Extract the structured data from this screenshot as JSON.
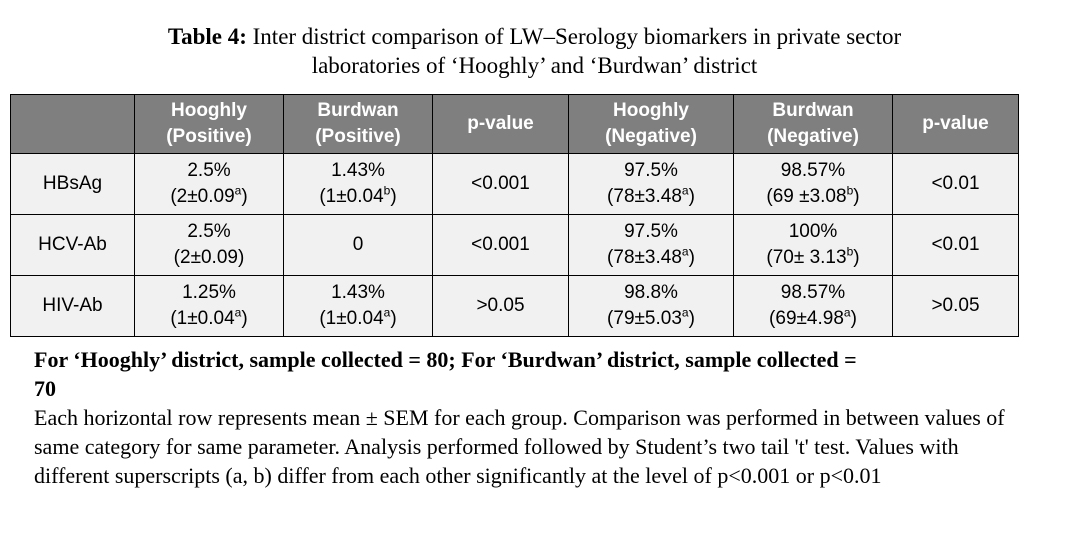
{
  "caption": {
    "label": "Table 4:",
    "line1": " Inter district comparison of LW–Serology biomarkers in private sector",
    "line2": "laboratories of  ‘Hooghly’ and  ‘Burdwan’ district"
  },
  "table": {
    "headers": [
      {
        "l1": "",
        "l2": ""
      },
      {
        "l1": "Hooghly",
        "l2": "(Positive)"
      },
      {
        "l1": "Burdwan",
        "l2": "(Positive)"
      },
      {
        "l1": "p-value",
        "l2": ""
      },
      {
        "l1": "Hooghly",
        "l2": "(Negative)"
      },
      {
        "l1": "Burdwan",
        "l2": "(Negative)"
      },
      {
        "l1": "p-value",
        "l2": ""
      }
    ],
    "rows": [
      {
        "name": "HBsAg",
        "cells": [
          {
            "pct": "2.5%",
            "mean": "(2±0.09",
            "sup": "a",
            "close": ")"
          },
          {
            "pct": "1.43%",
            "mean": "(1±0.04",
            "sup": "b",
            "close": ")"
          },
          {
            "pct": "<0.001",
            "mean": "",
            "sup": "",
            "close": ""
          },
          {
            "pct": "97.5%",
            "mean": "(78±3.48",
            "sup": "a",
            "close": ")"
          },
          {
            "pct": "98.57%",
            "mean": "(69 ±3.08",
            "sup": "b",
            "close": ")"
          },
          {
            "pct": "<0.01",
            "mean": "",
            "sup": "",
            "close": ""
          }
        ]
      },
      {
        "name": "HCV-Ab",
        "cells": [
          {
            "pct": "2.5%",
            "mean": "(2±0.09)",
            "sup": "",
            "close": ""
          },
          {
            "pct": "0",
            "mean": "",
            "sup": "",
            "close": ""
          },
          {
            "pct": "<0.001",
            "mean": "",
            "sup": "",
            "close": ""
          },
          {
            "pct": "97.5%",
            "mean": "(78±3.48",
            "sup": "a",
            "close": ")"
          },
          {
            "pct": "100%",
            "mean": "(70± 3.13",
            "sup": "b",
            "close": ")"
          },
          {
            "pct": "<0.01",
            "mean": "",
            "sup": "",
            "close": ""
          }
        ]
      },
      {
        "name": "HIV-Ab",
        "cells": [
          {
            "pct": "1.25%",
            "mean": "(1±0.04",
            "sup": "a",
            "close": ")"
          },
          {
            "pct": "1.43%",
            "mean": "(1±0.04",
            "sup": "a",
            "close": ")"
          },
          {
            "pct": ">0.05",
            "mean": "",
            "sup": "",
            "close": ""
          },
          {
            "pct": "98.8%",
            "mean": "(79±5.03",
            "sup": "a",
            "close": ")"
          },
          {
            "pct": "98.57%",
            "mean": "(69±4.98",
            "sup": "a",
            "close": ")"
          },
          {
            "pct": ">0.05",
            "mean": "",
            "sup": "",
            "close": ""
          }
        ]
      }
    ]
  },
  "notes": {
    "bold_line1": "For ‘Hooghly’ district, sample collected = 80;  For ‘Burdwan’ district, sample collected =",
    "bold_line2": "70",
    "paragraph": "Each horizontal row represents mean ± SEM for each group. Comparison was performed in between values of same category for same parameter. Analysis performed followed by Student’s two tail 't' test. Values with different superscripts (a, b) differ from each other significantly at the level of p<0.001 or p<0.01"
  }
}
